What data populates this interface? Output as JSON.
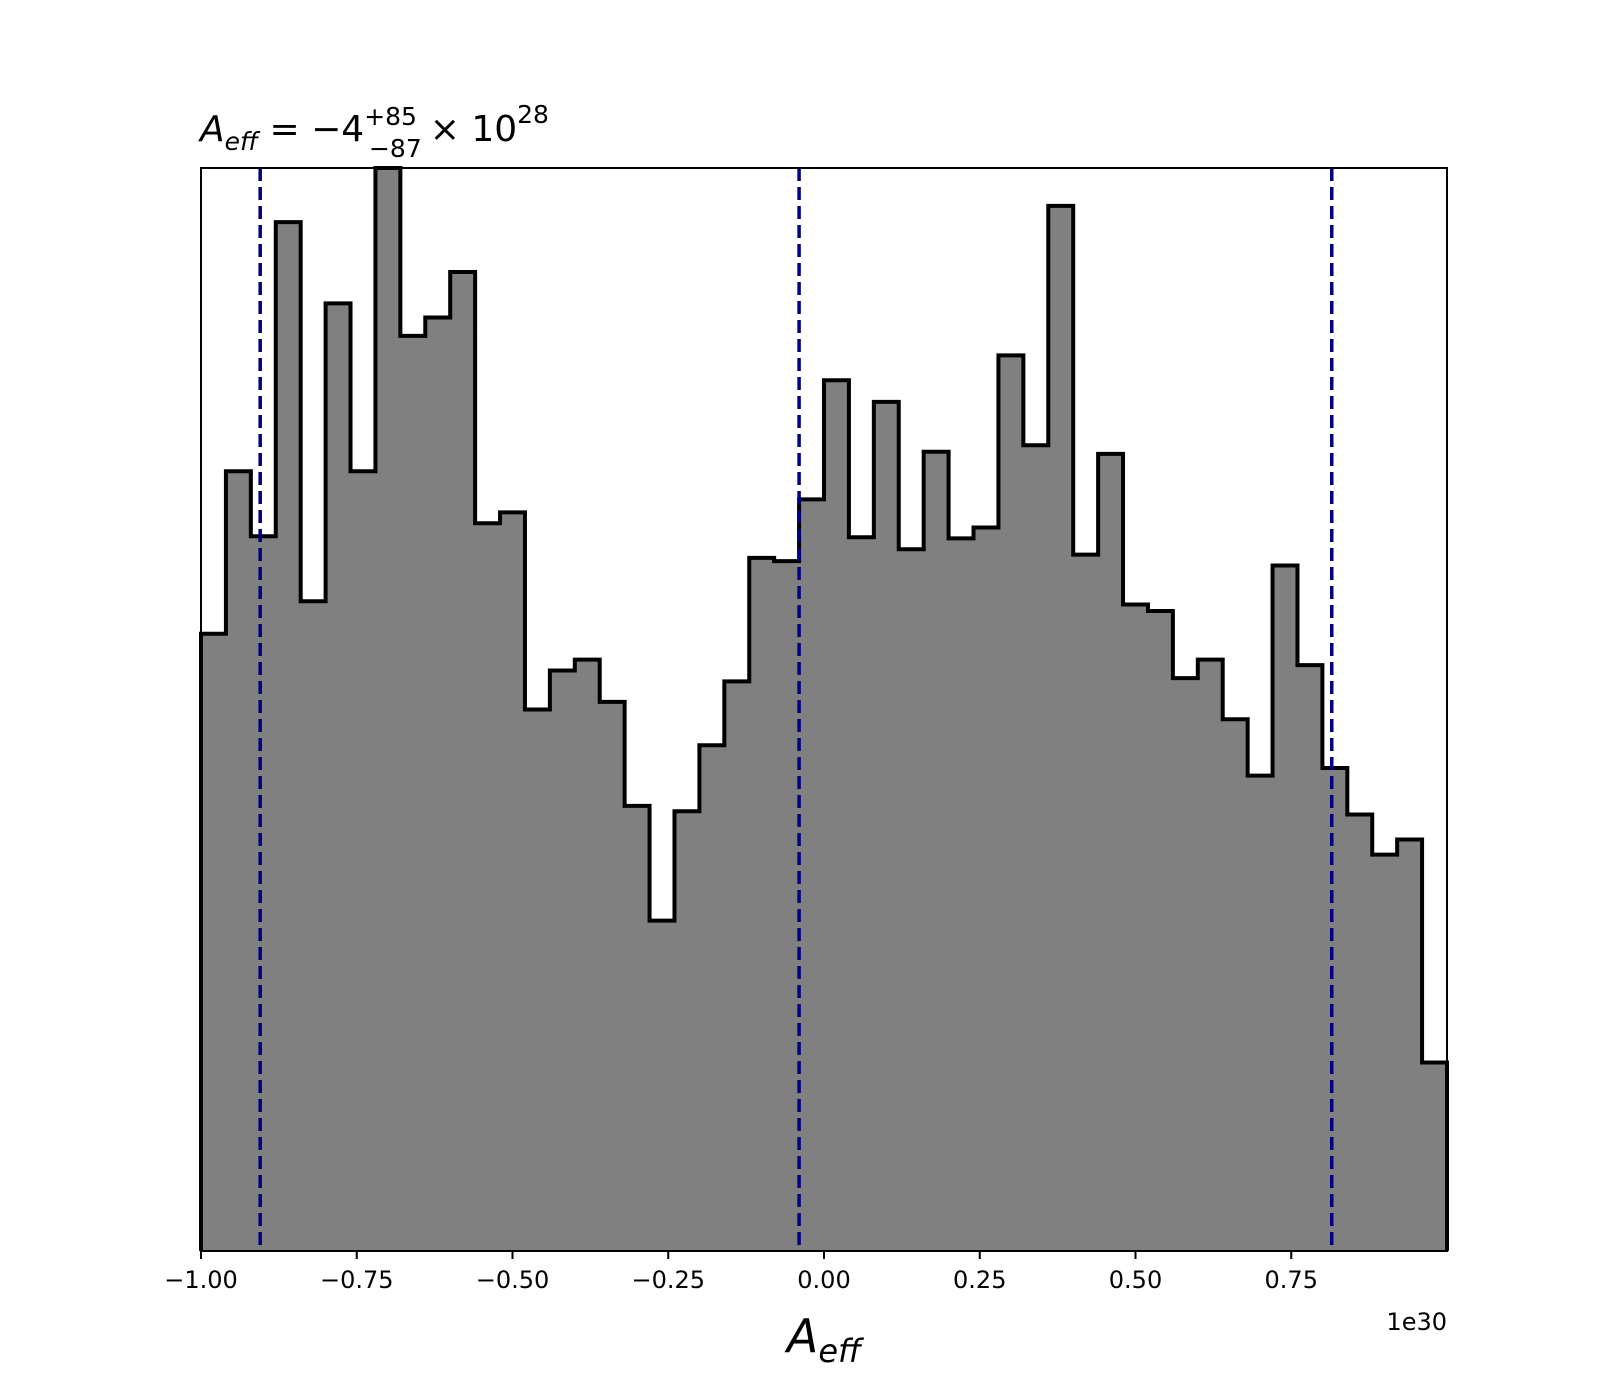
{
  "chart_data": {
    "type": "histogram",
    "title": {
      "symbol": "A",
      "symbol_sub": "eff",
      "prefix": " = −4",
      "sup": "+85",
      "sub": "−87",
      "suffix": "× 10",
      "exponent": "28"
    },
    "xlabel": {
      "symbol": "A",
      "sub": "eff"
    },
    "x_offset_label": "1e30",
    "xlim": [
      -1.0,
      1.0
    ],
    "ylim": [
      0,
      1.0
    ],
    "x_ticks": [
      -1.0,
      -0.75,
      -0.5,
      -0.25,
      0.0,
      0.25,
      0.5,
      0.75
    ],
    "x_tick_labels": [
      "−1.00",
      "−0.75",
      "−0.50",
      "−0.25",
      "0.00",
      "0.25",
      "0.50",
      "0.75"
    ],
    "y_ticks_visible": false,
    "bin_edges_range": [
      -1.0,
      1.0
    ],
    "bin_count": 50,
    "bin_heights": [
      0.57,
      0.72,
      0.66,
      0.95,
      0.6,
      0.875,
      0.72,
      1.0,
      0.845,
      0.862,
      0.904,
      0.672,
      0.682,
      0.5,
      0.536,
      0.546,
      0.507,
      0.411,
      0.305,
      0.406,
      0.467,
      0.526,
      0.64,
      0.637,
      0.694,
      0.804,
      0.659,
      0.784,
      0.648,
      0.738,
      0.658,
      0.668,
      0.827,
      0.744,
      0.965,
      0.643,
      0.736,
      0.597,
      0.591,
      0.529,
      0.546,
      0.491,
      0.439,
      0.633,
      0.541,
      0.446,
      0.403,
      0.366,
      0.38,
      0.174
    ],
    "vertical_lines": [
      -0.905,
      -0.04,
      0.815
    ],
    "colors": {
      "fill": "#808080",
      "edge": "#000000",
      "vline": "#000080"
    }
  }
}
